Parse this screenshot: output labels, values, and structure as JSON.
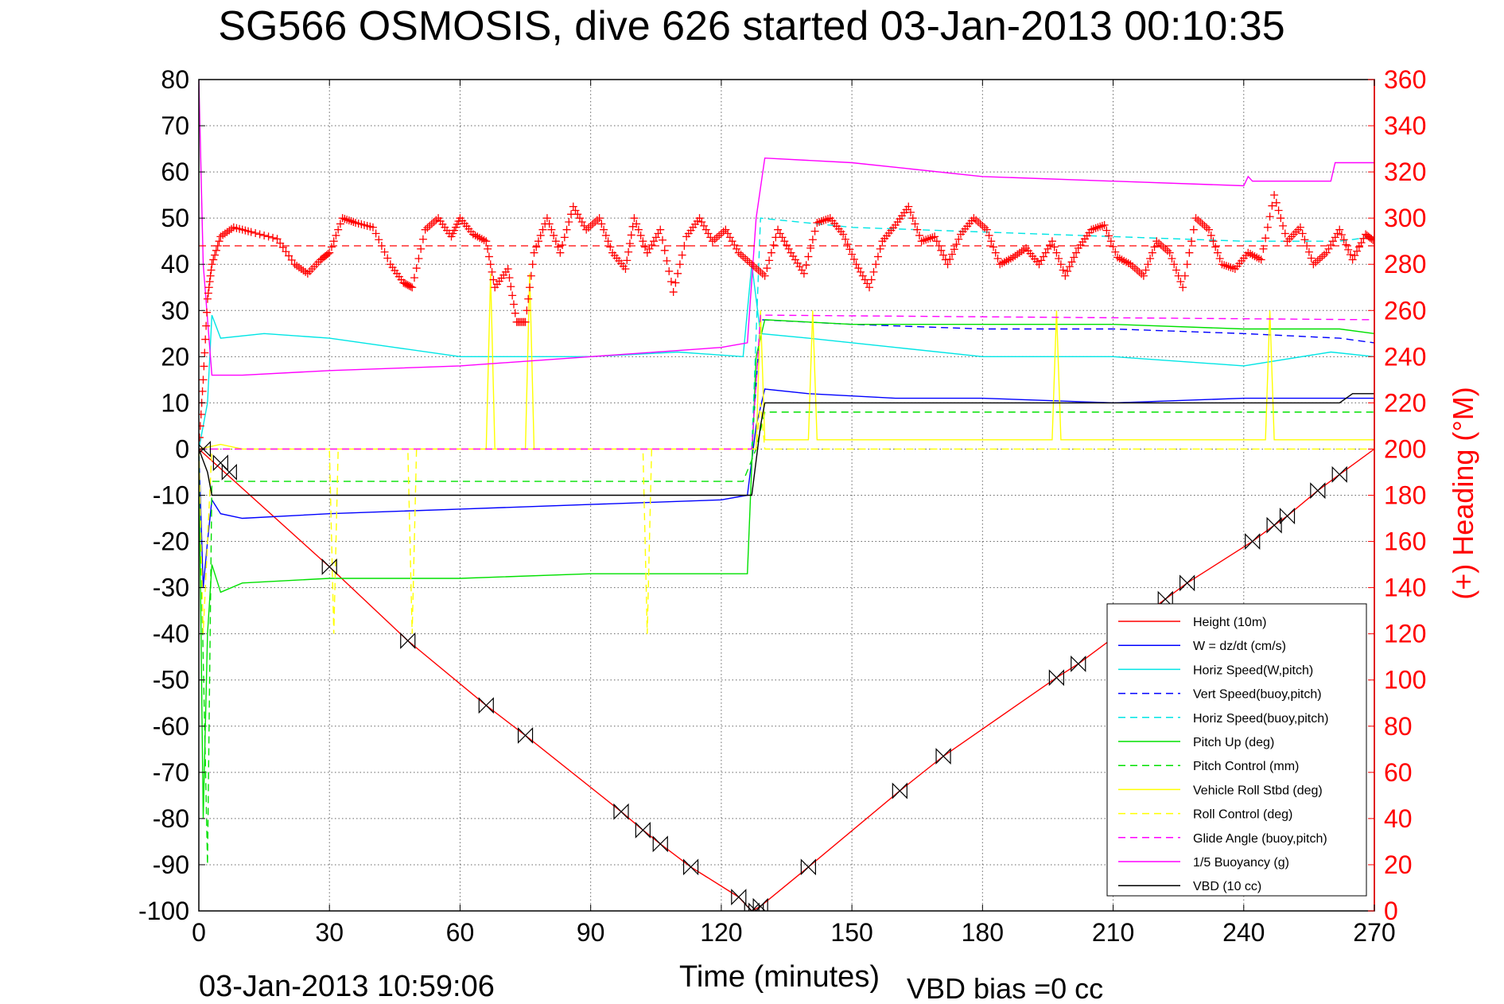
{
  "chart_data": {
    "type": "line",
    "title": "SG566 OSMOSIS, dive 626 started 03-Jan-2013 00:10:35",
    "xlabel": "Time (minutes)",
    "ylabel_right": "(+) Heading (°M)",
    "footer_timestamp": "03-Jan-2013 10:59:06",
    "footer_vbd": "VBD bias =0 cc",
    "xlim": [
      0,
      270
    ],
    "ylim_left": [
      -100,
      80
    ],
    "ylim_right": [
      0,
      360
    ],
    "grid": true,
    "legend_position": "bottom-right",
    "colors": {
      "right_axis": "#ff0000"
    },
    "x_ticks": [
      "0",
      "30",
      "60",
      "90",
      "120",
      "150",
      "180",
      "210",
      "240",
      "270"
    ],
    "y_left_ticks": [
      "80",
      "70",
      "60",
      "50",
      "40",
      "30",
      "20",
      "10",
      "0",
      "-10",
      "-20",
      "-30",
      "-40",
      "-50",
      "-60",
      "-70",
      "-80",
      "-90",
      "-100"
    ],
    "y_right_ticks": [
      "360",
      "340",
      "320",
      "300",
      "280",
      "260",
      "240",
      "220",
      "200",
      "180",
      "160",
      "140",
      "120",
      "100",
      "80",
      "60",
      "40",
      "20",
      "0"
    ],
    "series": [
      {
        "name": "Height (10m)",
        "color": "#ff0000",
        "dash": "solid",
        "x": [
          0,
          30,
          48,
          66,
          75,
          97,
          102,
          106,
          113,
          124,
          127,
          129,
          140,
          161,
          171,
          197,
          202,
          222,
          227,
          242,
          247,
          250,
          257,
          262,
          270
        ],
        "y": [
          0,
          -25.5,
          -41.5,
          -55.5,
          -62,
          -78.5,
          -82.5,
          -85.5,
          -90.5,
          -97,
          -100,
          -99,
          -90.5,
          -74,
          -66.5,
          -49.5,
          -46.5,
          -32.5,
          -29,
          -20,
          -16.5,
          -14.5,
          -9,
          -5.5,
          0
        ]
      },
      {
        "name": "W = dz/dt (cm/s)",
        "color": "#0000ff",
        "dash": "solid",
        "x": [
          0,
          1,
          2,
          3,
          5,
          10,
          30,
          60,
          90,
          120,
          126,
          128,
          130,
          140,
          160,
          180,
          210,
          240,
          250,
          260,
          270
        ],
        "y": [
          0,
          -30,
          -20,
          -11,
          -14,
          -15,
          -14,
          -13,
          -12,
          -11,
          -10,
          5,
          13,
          12,
          11,
          11,
          10,
          11,
          11,
          11,
          11
        ]
      },
      {
        "name": "Horiz Speed(W,pitch)",
        "color": "#00e5e5",
        "dash": "solid",
        "x": [
          0,
          2,
          3,
          5,
          15,
          30,
          45,
          60,
          75,
          90,
          110,
          125,
          127,
          129,
          140,
          160,
          180,
          210,
          240,
          260,
          270
        ],
        "y": [
          0,
          10,
          29,
          24,
          25,
          24,
          22,
          20,
          20,
          20,
          21,
          20,
          40,
          25,
          24,
          22,
          20,
          20,
          18,
          21,
          20
        ]
      },
      {
        "name": "Vert Speed(buoy,pitch)",
        "color": "#0000ff",
        "dash": "dashed",
        "x": [
          127,
          129,
          150,
          180,
          210,
          240,
          262,
          270
        ],
        "y": [
          0,
          28,
          27,
          26,
          26,
          25,
          24,
          23
        ]
      },
      {
        "name": "Horiz Speed(buoy,pitch)",
        "color": "#00e5e5",
        "dash": "dashed",
        "x": [
          127,
          129,
          150,
          180,
          210,
          240,
          262,
          270
        ],
        "y": [
          0,
          50,
          48,
          47,
          46,
          45,
          45,
          46
        ]
      },
      {
        "name": "Pitch Up (deg)",
        "color": "#00e000",
        "dash": "solid",
        "x": [
          0,
          1,
          2,
          3,
          5,
          10,
          30,
          60,
          90,
          120,
          126,
          128,
          130,
          150,
          180,
          210,
          240,
          262,
          270
        ],
        "y": [
          0,
          -80,
          -40,
          -25,
          -31,
          -29,
          -28,
          -28,
          -27,
          -27,
          -27,
          20,
          28,
          27,
          27,
          27,
          26,
          26,
          25
        ]
      },
      {
        "name": "Pitch Control (mm)",
        "color": "#00e000",
        "dash": "dashed",
        "x": [
          0,
          2,
          3,
          125,
          128,
          130,
          270
        ],
        "y": [
          0,
          -90,
          -7,
          -7,
          0,
          8,
          8
        ]
      },
      {
        "name": "Vehicle Roll Stbd (deg)",
        "color": "#ffff00",
        "dash": "solid",
        "x": [
          0,
          5,
          10,
          66,
          67,
          68,
          75,
          76,
          77,
          128,
          129,
          130,
          140,
          141,
          142,
          196,
          197,
          198,
          245,
          246,
          247,
          270
        ],
        "y": [
          0,
          1,
          0,
          0,
          38,
          0,
          0,
          38,
          0,
          0,
          30,
          2,
          2,
          30,
          2,
          2,
          30,
          2,
          2,
          30,
          2,
          2
        ]
      },
      {
        "name": "Roll Control (deg)",
        "color": "#ffff00",
        "dash": "dashed",
        "x": [
          0,
          1,
          2,
          3,
          30,
          31,
          32,
          48,
          49,
          50,
          102,
          103,
          104,
          128,
          129,
          130,
          270
        ],
        "y": [
          0,
          -40,
          -20,
          0,
          0,
          -40,
          0,
          0,
          -40,
          0,
          0,
          -40,
          0,
          0,
          10,
          0,
          0
        ]
      },
      {
        "name": "Glide Angle (buoy,pitch)",
        "color": "#ff00ff",
        "dash": "dashed",
        "x": [
          0,
          127,
          129,
          270
        ],
        "y": [
          0,
          0,
          29,
          28
        ]
      },
      {
        "name": "1/5 Buoyancy (g)",
        "color": "#ff00ff",
        "dash": "solid",
        "x": [
          0,
          1,
          3,
          10,
          30,
          60,
          90,
          120,
          126,
          128,
          130,
          150,
          180,
          210,
          240,
          241,
          242,
          260,
          261,
          270
        ],
        "y": [
          80,
          40,
          16,
          16,
          17,
          18,
          20,
          22,
          23,
          50,
          63,
          62,
          59,
          58,
          57,
          59,
          58,
          58,
          62,
          62
        ]
      },
      {
        "name": "VBD (10 cc)",
        "color": "#000000",
        "dash": "solid",
        "x": [
          0,
          2,
          3,
          126,
          127,
          129,
          130,
          140,
          180,
          210,
          240,
          262,
          265,
          270
        ],
        "y": [
          0,
          -5,
          -10,
          -10,
          -10,
          5,
          10,
          10,
          10,
          10,
          10,
          10,
          12,
          12
        ]
      }
    ],
    "heading_series": {
      "name": "Heading",
      "color": "#ff0000",
      "marker": "+",
      "reference_line": 288,
      "x": [
        0,
        1,
        2,
        3,
        5,
        8,
        12,
        18,
        22,
        25,
        28,
        30,
        33,
        36,
        40,
        44,
        47,
        49,
        52,
        55,
        58,
        60,
        63,
        66,
        68,
        71,
        73,
        75,
        77,
        80,
        83,
        86,
        89,
        92,
        95,
        98,
        100,
        103,
        106,
        109,
        112,
        115,
        118,
        121,
        124,
        127,
        130,
        133,
        136,
        139,
        142,
        145,
        148,
        151,
        154,
        157,
        160,
        163,
        166,
        169,
        172,
        175,
        178,
        181,
        184,
        187,
        190,
        193,
        196,
        199,
        202,
        205,
        208,
        211,
        214,
        217,
        220,
        223,
        226,
        229,
        232,
        235,
        238,
        241,
        244,
        247,
        250,
        253,
        256,
        259,
        262,
        265,
        268,
        270
      ],
      "y": [
        200,
        230,
        265,
        280,
        292,
        296,
        294,
        291,
        280,
        276,
        282,
        285,
        300,
        298,
        296,
        280,
        272,
        270,
        295,
        300,
        292,
        300,
        293,
        290,
        270,
        278,
        255,
        255,
        285,
        300,
        285,
        305,
        295,
        300,
        285,
        278,
        300,
        285,
        295,
        268,
        292,
        300,
        290,
        295,
        285,
        280,
        275,
        295,
        285,
        276,
        298,
        300,
        293,
        280,
        270,
        290,
        297,
        305,
        290,
        292,
        280,
        293,
        300,
        295,
        280,
        283,
        287,
        280,
        290,
        275,
        287,
        295,
        297,
        283,
        280,
        275,
        290,
        285,
        270,
        300,
        295,
        280,
        278,
        285,
        282,
        310,
        290,
        296,
        280,
        285,
        295,
        282,
        293,
        290
      ]
    },
    "waypoint_markers": {
      "x": [
        1,
        5,
        7,
        30,
        48,
        66,
        75,
        97,
        102,
        106,
        113,
        124,
        127,
        128,
        129,
        140,
        161,
        171,
        197,
        202,
        222,
        227,
        242,
        247,
        250,
        257,
        262
      ],
      "y": [
        0,
        -3,
        -5,
        -25.5,
        -41.5,
        -55.5,
        -62,
        -78.5,
        -82.5,
        -85.5,
        -90.5,
        -97,
        -100,
        -100,
        -99,
        -90.5,
        -74,
        -66.5,
        -49.5,
        -46.5,
        -32.5,
        -29,
        -20,
        -16.5,
        -14.5,
        -9,
        -5.5
      ]
    }
  }
}
